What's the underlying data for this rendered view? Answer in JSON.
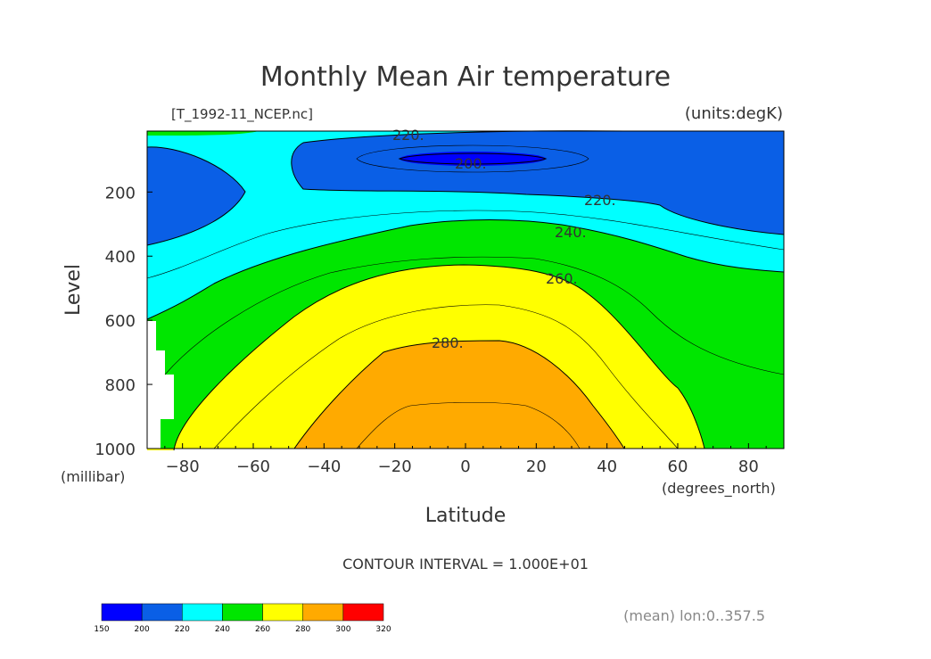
{
  "chart_data": {
    "type": "contour",
    "title": "Monthly Mean Air temperature",
    "source_label": "[T_1992-11_NCEP.nc]",
    "units_label": "(units:degK)",
    "xlabel": "Latitude",
    "x_units": "(degrees_north)",
    "ylabel": "Level",
    "y_units": "(millibar)",
    "xlim": [
      -90,
      90
    ],
    "ylim": [
      1000,
      10
    ],
    "x_ticks": [
      -80,
      -60,
      -40,
      -20,
      0,
      20,
      40,
      60,
      80
    ],
    "x_tick_labels": [
      "−80",
      "−60",
      "−40",
      "−20",
      "0",
      "20",
      "40",
      "60",
      "80"
    ],
    "y_ticks": [
      200,
      400,
      600,
      800,
      1000
    ],
    "y_tick_labels": [
      "200",
      "400",
      "600",
      "800",
      "1000"
    ],
    "contour_interval_text": "CONTOUR INTERVAL = 1.000E+01",
    "footer_text": "(mean) lon:0..357.5",
    "contour_labels": [
      "220.",
      "200.",
      "220.",
      "240.",
      "260.",
      "280."
    ],
    "colorbar": {
      "levels": [
        150,
        200,
        220,
        240,
        260,
        280,
        300,
        320
      ],
      "level_labels": [
        "150",
        "200",
        "220",
        "240",
        "260",
        "280",
        "300",
        "320"
      ],
      "colors": [
        "#0000ff",
        "#0a5fe6",
        "#00ffff",
        "#00e600",
        "#ffff00",
        "#ffaa00",
        "#ff0000"
      ]
    },
    "fill_colors": {
      "c200": "#0000ff",
      "c220": "#0a5fe6",
      "c240": "#00ffff",
      "c260": "#00e600",
      "c280": "#ffff00",
      "c300": "#ffaa00"
    }
  }
}
